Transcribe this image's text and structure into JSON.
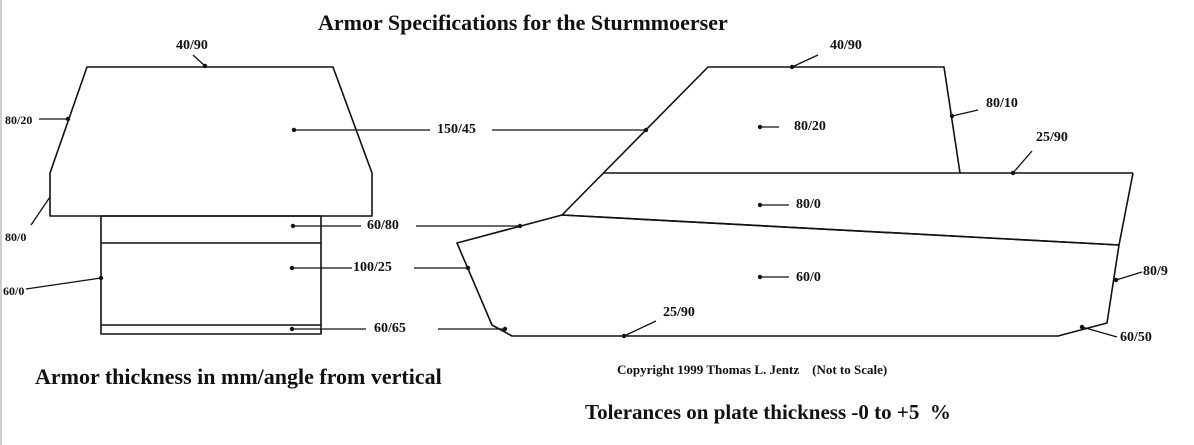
{
  "title": "Armor Specifications for the Sturmmoerser",
  "labels": {
    "turret_top": "40/90",
    "turret_side_upper": "80/20",
    "turret_side_lower": "80/0",
    "hull_side_lower": "60/0",
    "turret_front": "150/45",
    "upper_hull_front": "60/80",
    "hull_front": "100/25",
    "lower_front": "60/65",
    "casemate_top": "40/90",
    "casemate_rear": "80/10",
    "casemate_side": "80/20",
    "deck": "25/90",
    "upper_side": "80/0",
    "lower_side": "60/0",
    "hull_rear": "80/9",
    "belly": "25/90",
    "lower_rear": "60/50"
  },
  "notes": {
    "units": "Armor thickness in mm/angle from vertical",
    "copyright": "Copyright 1999 Thomas L. Jentz    (Not to Scale)",
    "tolerance": "Tolerances on plate thickness -0 to +5  %"
  }
}
